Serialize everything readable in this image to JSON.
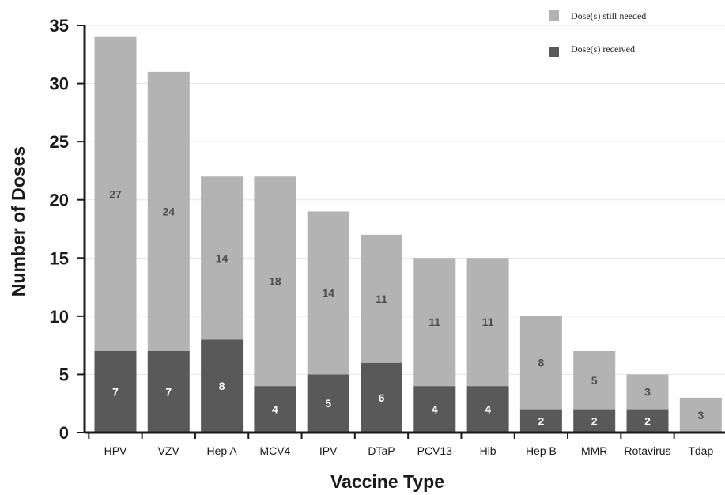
{
  "chart_data": {
    "type": "bar",
    "stacked": true,
    "title": "",
    "xlabel": "Vaccine Type",
    "ylabel": "Number of Doses",
    "ylim": [
      0,
      35
    ],
    "yticks": [
      0,
      5,
      10,
      15,
      20,
      25,
      30,
      35
    ],
    "grid": true,
    "legend_position": "top-right",
    "categories": [
      "HPV",
      "VZV",
      "Hep A",
      "MCV4",
      "IPV",
      "DTaP",
      "PCV13",
      "Hib",
      "Hep B",
      "MMR",
      "Rotavirus",
      "Tdap"
    ],
    "series": [
      {
        "name": "Dose(s) received",
        "color": "#595959",
        "label_color": "#ffffff",
        "values": [
          7,
          7,
          8,
          4,
          5,
          6,
          4,
          4,
          2,
          2,
          2,
          0
        ]
      },
      {
        "name": "Dose(s) still needed",
        "color": "#b3b3b3",
        "label_color": "#4d4d4d",
        "values": [
          27,
          24,
          14,
          18,
          14,
          11,
          11,
          11,
          8,
          5,
          3,
          3
        ]
      }
    ]
  }
}
